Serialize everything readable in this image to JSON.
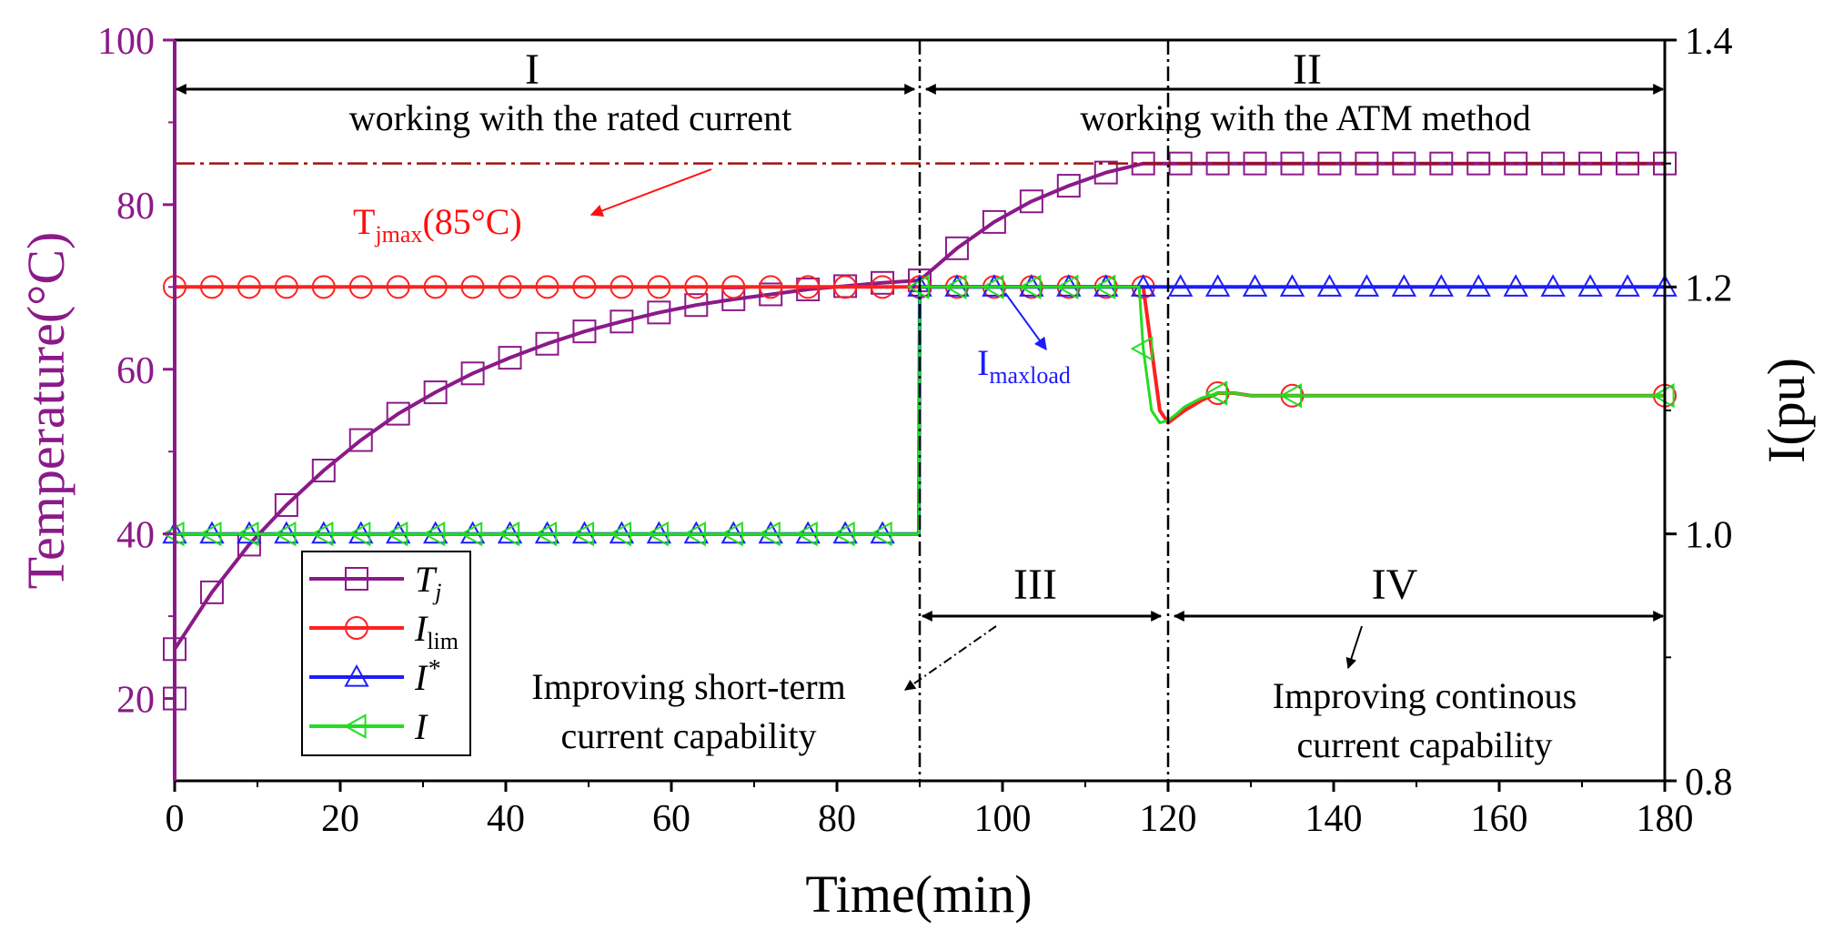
{
  "chart_data": {
    "type": "line",
    "title": "",
    "xlabel": "Time(min)",
    "ylabel_left": "Temperature(°C)",
    "ylabel_right": "I(pu)",
    "xlim": [
      0,
      180
    ],
    "ylim_left": [
      10,
      100
    ],
    "ylim_right": [
      0.8,
      1.4
    ],
    "x_ticks": [
      0,
      20,
      40,
      60,
      80,
      100,
      120,
      140,
      160,
      180
    ],
    "y_left_ticks": [
      20,
      40,
      60,
      80,
      100
    ],
    "y_right_ticks": [
      "0.8",
      "1.0",
      "1.2",
      "1.4"
    ],
    "colors": {
      "Tj": "#8B1A89",
      "Ilim": "#ff2020",
      "Istar": "#1c1cff",
      "I": "#22dd22",
      "tjmax_line": "#a01010",
      "tjmax_label": "#ff1010",
      "imaxload_label": "#1c1cff",
      "left_axis": "#8B1A89"
    },
    "series": [
      {
        "name": "Tj",
        "axis": "left",
        "marker": "square",
        "x": [
          0,
          4.5,
          9,
          13.5,
          18,
          22.5,
          27,
          31.5,
          36,
          40.5,
          45,
          49.5,
          54,
          58.5,
          63,
          67.5,
          72,
          76.5,
          81,
          85.5,
          90,
          94.5,
          99,
          103.5,
          108,
          112.5,
          117,
          121.5,
          126,
          130.5,
          135,
          139.5,
          144,
          148.5,
          153,
          157.5,
          162,
          166.5,
          171,
          175.5,
          180
        ],
        "values": [
          26,
          32.9,
          38.7,
          43.5,
          47.7,
          51.4,
          54.6,
          57.2,
          59.5,
          61.4,
          63.1,
          64.6,
          65.8,
          66.9,
          67.8,
          68.5,
          69.1,
          69.7,
          70.1,
          70.5,
          70.8,
          74.7,
          77.9,
          80.4,
          82.3,
          83.9,
          85,
          85,
          85,
          85,
          85,
          85,
          85,
          85,
          85,
          85,
          85,
          85,
          85,
          85,
          85
        ]
      },
      {
        "name": "Ilim",
        "axis": "right",
        "marker": "circle",
        "x": [
          0,
          4.5,
          9,
          13.5,
          18,
          22.5,
          27,
          31.5,
          36,
          40.5,
          45,
          49.5,
          54,
          58.5,
          63,
          67.5,
          72,
          76.5,
          81,
          85.5,
          90,
          94.5,
          99,
          103.5,
          108,
          112.5,
          116,
          117,
          118,
          119,
          120,
          121,
          122,
          124,
          126,
          128,
          130,
          135,
          140,
          150,
          160,
          170,
          180
        ],
        "values": [
          1.2,
          1.2,
          1.2,
          1.2,
          1.2,
          1.2,
          1.2,
          1.2,
          1.2,
          1.2,
          1.2,
          1.2,
          1.2,
          1.2,
          1.2,
          1.2,
          1.2,
          1.2,
          1.2,
          1.2,
          1.2,
          1.2,
          1.2,
          1.2,
          1.2,
          1.2,
          1.2,
          1.2,
          1.15,
          1.1,
          1.09,
          1.095,
          1.1,
          1.108,
          1.114,
          1.114,
          1.112,
          1.112,
          1.112,
          1.112,
          1.112,
          1.112,
          1.112
        ]
      },
      {
        "name": "Istar",
        "axis": "right",
        "marker": "triangle-up",
        "x": [
          0,
          4.5,
          9,
          13.5,
          18,
          22.5,
          27,
          31.5,
          36,
          40.5,
          45,
          49.5,
          54,
          58.5,
          63,
          67.5,
          72,
          76.5,
          81,
          85.5,
          89.9,
          90,
          94.5,
          99,
          103.5,
          108,
          112.5,
          117,
          121.5,
          126,
          130.5,
          135,
          139.5,
          144,
          148.5,
          153,
          157.5,
          162,
          166.5,
          171,
          175.5,
          180
        ],
        "values": [
          1.0,
          1.0,
          1.0,
          1.0,
          1.0,
          1.0,
          1.0,
          1.0,
          1.0,
          1.0,
          1.0,
          1.0,
          1.0,
          1.0,
          1.0,
          1.0,
          1.0,
          1.0,
          1.0,
          1.0,
          1.0,
          1.2,
          1.2,
          1.2,
          1.2,
          1.2,
          1.2,
          1.2,
          1.2,
          1.2,
          1.2,
          1.2,
          1.2,
          1.2,
          1.2,
          1.2,
          1.2,
          1.2,
          1.2,
          1.2,
          1.2,
          1.2
        ]
      },
      {
        "name": "I",
        "axis": "right",
        "marker": "triangle-left",
        "x": [
          0,
          4.5,
          9,
          13.5,
          18,
          22.5,
          27,
          31.5,
          36,
          40.5,
          45,
          49.5,
          54,
          58.5,
          63,
          67.5,
          72,
          76.5,
          81,
          85.5,
          89.9,
          90,
          94.5,
          99,
          103.5,
          108,
          112.5,
          116.5,
          117,
          118,
          119,
          120,
          121,
          122,
          124,
          126,
          128,
          130,
          135,
          140,
          150,
          160,
          170,
          180
        ],
        "values": [
          1.0,
          1.0,
          1.0,
          1.0,
          1.0,
          1.0,
          1.0,
          1.0,
          1.0,
          1.0,
          1.0,
          1.0,
          1.0,
          1.0,
          1.0,
          1.0,
          1.0,
          1.0,
          1.0,
          1.0,
          1.0,
          1.2,
          1.2,
          1.2,
          1.2,
          1.2,
          1.2,
          1.2,
          1.15,
          1.1,
          1.09,
          1.092,
          1.097,
          1.103,
          1.11,
          1.114,
          1.114,
          1.112,
          1.112,
          1.112,
          1.112,
          1.112,
          1.112,
          1.112
        ]
      }
    ],
    "reference_line": {
      "name": "Tjmax",
      "axis": "left",
      "value": 85,
      "label_main": "T",
      "label_sub": "jmax",
      "label_rest": "(85°C)"
    },
    "phase_dividers_x": [
      90,
      120
    ],
    "legend": {
      "placement": "lower-left",
      "entries": [
        {
          "series": "Tj",
          "label": "T",
          "sub": "j",
          "sup": ""
        },
        {
          "series": "Ilim",
          "label": "I",
          "sub": "lim",
          "sup": ""
        },
        {
          "series": "Istar",
          "label": "I",
          "sub": "",
          "sup": "*"
        },
        {
          "series": "I",
          "label": "I",
          "sub": "",
          "sup": ""
        }
      ]
    },
    "annotations": {
      "region_I": "I",
      "region_II": "II",
      "region_III": "III",
      "region_IV": "IV",
      "text_rated": "working with the rated current",
      "text_atm": "working with the ATM method",
      "imaxload_main": "I",
      "imaxload_sub": "maxload",
      "short_term_line1": "Improving short-term",
      "short_term_line2": "current capability",
      "continuous_line1": "Improving continous",
      "continuous_line2": "current capability"
    }
  }
}
